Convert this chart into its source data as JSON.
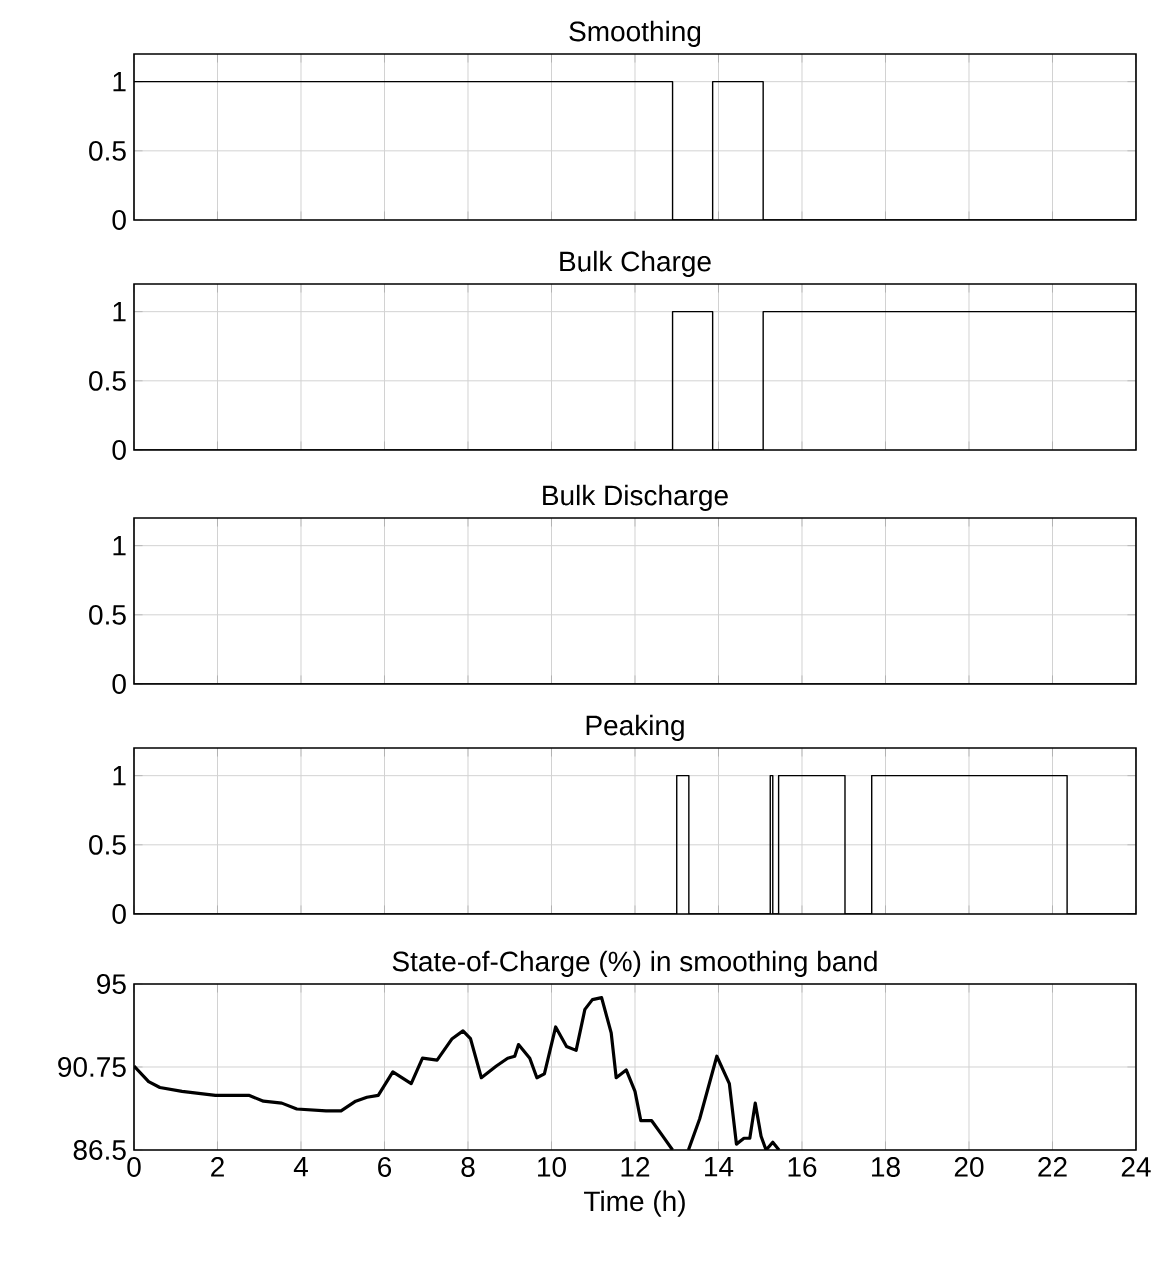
{
  "chart_data": [
    {
      "type": "step",
      "title": "Smoothing",
      "x": [
        0,
        12.9,
        13.86,
        15.07,
        24
      ],
      "values": [
        1,
        0,
        1,
        0,
        0
      ],
      "color": "#000000",
      "xlim": [
        0,
        24
      ],
      "xticks": [
        0,
        2,
        4,
        6,
        8,
        10,
        12,
        14,
        16,
        18,
        20,
        22,
        24
      ],
      "ylim": [
        0,
        1.2
      ],
      "yticks": [
        0,
        0.5,
        1
      ],
      "grid": true,
      "tick_labels": "y"
    },
    {
      "type": "step",
      "title": "Bulk Charge",
      "x": [
        0,
        12.9,
        13.86,
        15.07,
        24
      ],
      "values": [
        0,
        1,
        0,
        1,
        1
      ],
      "color": "#000000",
      "xlim": [
        0,
        24
      ],
      "xticks": [
        0,
        2,
        4,
        6,
        8,
        10,
        12,
        14,
        16,
        18,
        20,
        22,
        24
      ],
      "ylim": [
        0,
        1.2
      ],
      "yticks": [
        0,
        0.5,
        1
      ],
      "grid": true,
      "tick_labels": "y"
    },
    {
      "type": "step",
      "title": "Bulk Discharge",
      "x": [
        0,
        24
      ],
      "values": [
        0,
        0
      ],
      "color": "#000000",
      "xlim": [
        0,
        24
      ],
      "xticks": [
        0,
        2,
        4,
        6,
        8,
        10,
        12,
        14,
        16,
        18,
        20,
        22,
        24
      ],
      "ylim": [
        0,
        1.2
      ],
      "yticks": [
        0,
        0.5,
        1
      ],
      "grid": true,
      "tick_labels": "y"
    },
    {
      "type": "step",
      "title": "Peaking",
      "x": [
        0,
        13.0,
        13.29,
        15.24,
        15.3,
        15.44,
        17.03,
        17.67,
        22.35,
        24
      ],
      "values": [
        0,
        1,
        0,
        1,
        0,
        1,
        0,
        1,
        0,
        0
      ],
      "color": "#000000",
      "xlim": [
        0,
        24
      ],
      "xticks": [
        0,
        2,
        4,
        6,
        8,
        10,
        12,
        14,
        16,
        18,
        20,
        22,
        24
      ],
      "ylim": [
        0,
        1.2
      ],
      "yticks": [
        0,
        0.5,
        1
      ],
      "grid": true,
      "tick_labels": "y"
    },
    {
      "type": "line",
      "title": "State-of-Charge (%) in smoothing band",
      "xlabel": "Time (h)",
      "x": [
        0,
        0.35,
        0.62,
        1.15,
        1.95,
        2.75,
        3.1,
        3.54,
        3.9,
        4.6,
        4.96,
        5.31,
        5.58,
        5.85,
        6.2,
        6.64,
        6.91,
        7.26,
        7.62,
        7.88,
        8.06,
        8.32,
        8.68,
        8.95,
        9.12,
        9.21,
        9.48,
        9.65,
        9.83,
        10.1,
        10.36,
        10.59,
        10.8,
        10.98,
        11.2,
        11.43,
        11.55,
        11.79,
        12.0,
        12.14,
        12.4,
        12.67,
        12.9,
        13.1,
        13.28,
        13.55,
        13.96,
        14.26,
        14.43,
        14.61,
        14.75,
        14.88,
        15.02,
        15.14,
        15.3,
        15.45
      ],
      "values": [
        90.8,
        90.0,
        89.7,
        89.5,
        89.3,
        89.3,
        89.0,
        88.9,
        88.6,
        88.5,
        88.5,
        89.0,
        89.2,
        89.3,
        90.5,
        89.9,
        91.2,
        91.1,
        92.2,
        92.6,
        92.2,
        90.2,
        90.8,
        91.2,
        91.3,
        91.9,
        91.2,
        90.2,
        90.4,
        92.8,
        91.8,
        91.6,
        93.7,
        94.2,
        94.3,
        92.5,
        90.2,
        90.6,
        89.5,
        88.0,
        88.0,
        87.2,
        86.5,
        null,
        86.5,
        88.1,
        91.3,
        89.9,
        86.8,
        87.1,
        87.1,
        88.9,
        87.2,
        86.5,
        86.9,
        86.5
      ],
      "color": "#000000",
      "xlim": [
        0,
        24
      ],
      "xticks": [
        0,
        2,
        4,
        6,
        8,
        10,
        12,
        14,
        16,
        18,
        20,
        22,
        24
      ],
      "ylim": [
        86.5,
        95
      ],
      "yticks": [
        86.5,
        90.75,
        95
      ],
      "grid": true
    }
  ]
}
